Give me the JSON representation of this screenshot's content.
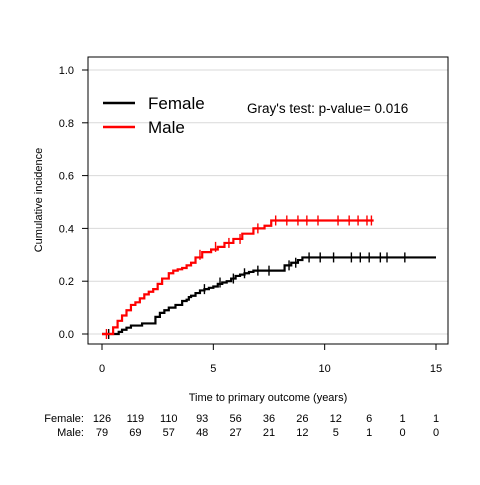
{
  "chart_data": {
    "type": "line",
    "title": "",
    "xlabel": "Time to primary outcome (years)",
    "ylabel": "Cumulative incidence",
    "xlim": [
      0,
      15
    ],
    "ylim": [
      0,
      1
    ],
    "x_ticks": [
      0,
      5,
      10,
      15
    ],
    "x_tick_labels": [
      "0",
      "5",
      "10",
      "15"
    ],
    "y_ticks": [
      0.0,
      0.2,
      0.4,
      0.6,
      0.8,
      1.0
    ],
    "y_tick_labels": [
      "0.0",
      "0.2",
      "0.4",
      "0.6",
      "0.8",
      "1.0"
    ],
    "grid": "horizontal",
    "step": true,
    "legend": {
      "placement": "top-left"
    },
    "annotation": "Gray's test: p-value= 0.016",
    "series": [
      {
        "name": "Female",
        "color": "#000000",
        "x": [
          0,
          0.6,
          0.75,
          0.9,
          1.1,
          1.3,
          1.5,
          1.8,
          2.2,
          2.4,
          2.6,
          2.8,
          3.0,
          3.3,
          3.6,
          3.8,
          3.9,
          4.0,
          4.2,
          4.4,
          4.6,
          4.8,
          5.0,
          5.2,
          5.4,
          5.6,
          5.8,
          6.0,
          6.2,
          6.4,
          6.6,
          6.8,
          7.0,
          7.3,
          7.6,
          8.2,
          8.5,
          8.8,
          9.0,
          9.3,
          15
        ],
        "y": [
          0,
          0,
          0.008,
          0.016,
          0.024,
          0.032,
          0.032,
          0.04,
          0.04,
          0.065,
          0.08,
          0.09,
          0.1,
          0.11,
          0.125,
          0.13,
          0.14,
          0.145,
          0.155,
          0.165,
          0.17,
          0.175,
          0.18,
          0.19,
          0.195,
          0.2,
          0.21,
          0.22,
          0.225,
          0.23,
          0.235,
          0.24,
          0.24,
          0.24,
          0.24,
          0.26,
          0.27,
          0.28,
          0.29,
          0.29,
          0.29
        ],
        "censor_x": [
          0.3,
          4.6,
          5.3,
          5.9,
          6.4,
          7.0,
          7.5,
          8.4,
          8.7,
          9.3,
          9.8,
          10.4,
          11.2,
          11.6,
          12.0,
          12.5,
          12.8,
          13.6
        ],
        "censor_y": [
          0,
          0.17,
          0.195,
          0.21,
          0.23,
          0.24,
          0.24,
          0.26,
          0.27,
          0.29,
          0.29,
          0.29,
          0.29,
          0.29,
          0.29,
          0.29,
          0.29,
          0.29
        ]
      },
      {
        "name": "Male",
        "color": "#ff0000",
        "x": [
          0,
          0.5,
          0.7,
          0.9,
          1.1,
          1.3,
          1.5,
          1.7,
          1.9,
          2.1,
          2.3,
          2.5,
          2.7,
          3.0,
          3.2,
          3.4,
          3.6,
          3.8,
          4.0,
          4.2,
          4.5,
          4.9,
          5.2,
          5.5,
          5.9,
          6.3,
          6.8,
          7.3,
          7.6,
          12.2
        ],
        "y": [
          0,
          0.025,
          0.05,
          0.07,
          0.09,
          0.11,
          0.12,
          0.135,
          0.15,
          0.16,
          0.17,
          0.19,
          0.21,
          0.23,
          0.24,
          0.245,
          0.25,
          0.26,
          0.27,
          0.29,
          0.31,
          0.32,
          0.33,
          0.345,
          0.36,
          0.38,
          0.4,
          0.41,
          0.43,
          0.43
        ],
        "censor_x": [
          0.2,
          4.4,
          5.1,
          5.7,
          6.2,
          7.0,
          7.8,
          8.3,
          8.8,
          9.2,
          9.7,
          10.6,
          11.1,
          11.5,
          11.9,
          12.1
        ],
        "censor_y": [
          0,
          0.3,
          0.33,
          0.345,
          0.36,
          0.4,
          0.43,
          0.43,
          0.43,
          0.43,
          0.43,
          0.43,
          0.43,
          0.43,
          0.43,
          0.43
        ]
      }
    ],
    "risk_table": {
      "times": [
        0,
        1.5,
        3,
        4.5,
        6,
        7.5,
        9,
        10.5,
        12,
        13.5,
        15
      ],
      "rows": [
        {
          "label": "Female:",
          "values": [
            "126",
            "119",
            "110",
            "93",
            "56",
            "36",
            "26",
            "12",
            "6",
            "1",
            "1"
          ]
        },
        {
          "label": "Male:",
          "values": [
            "79",
            "69",
            "57",
            "48",
            "27",
            "21",
            "12",
            "5",
            "1",
            "0",
            "0"
          ]
        }
      ]
    }
  }
}
